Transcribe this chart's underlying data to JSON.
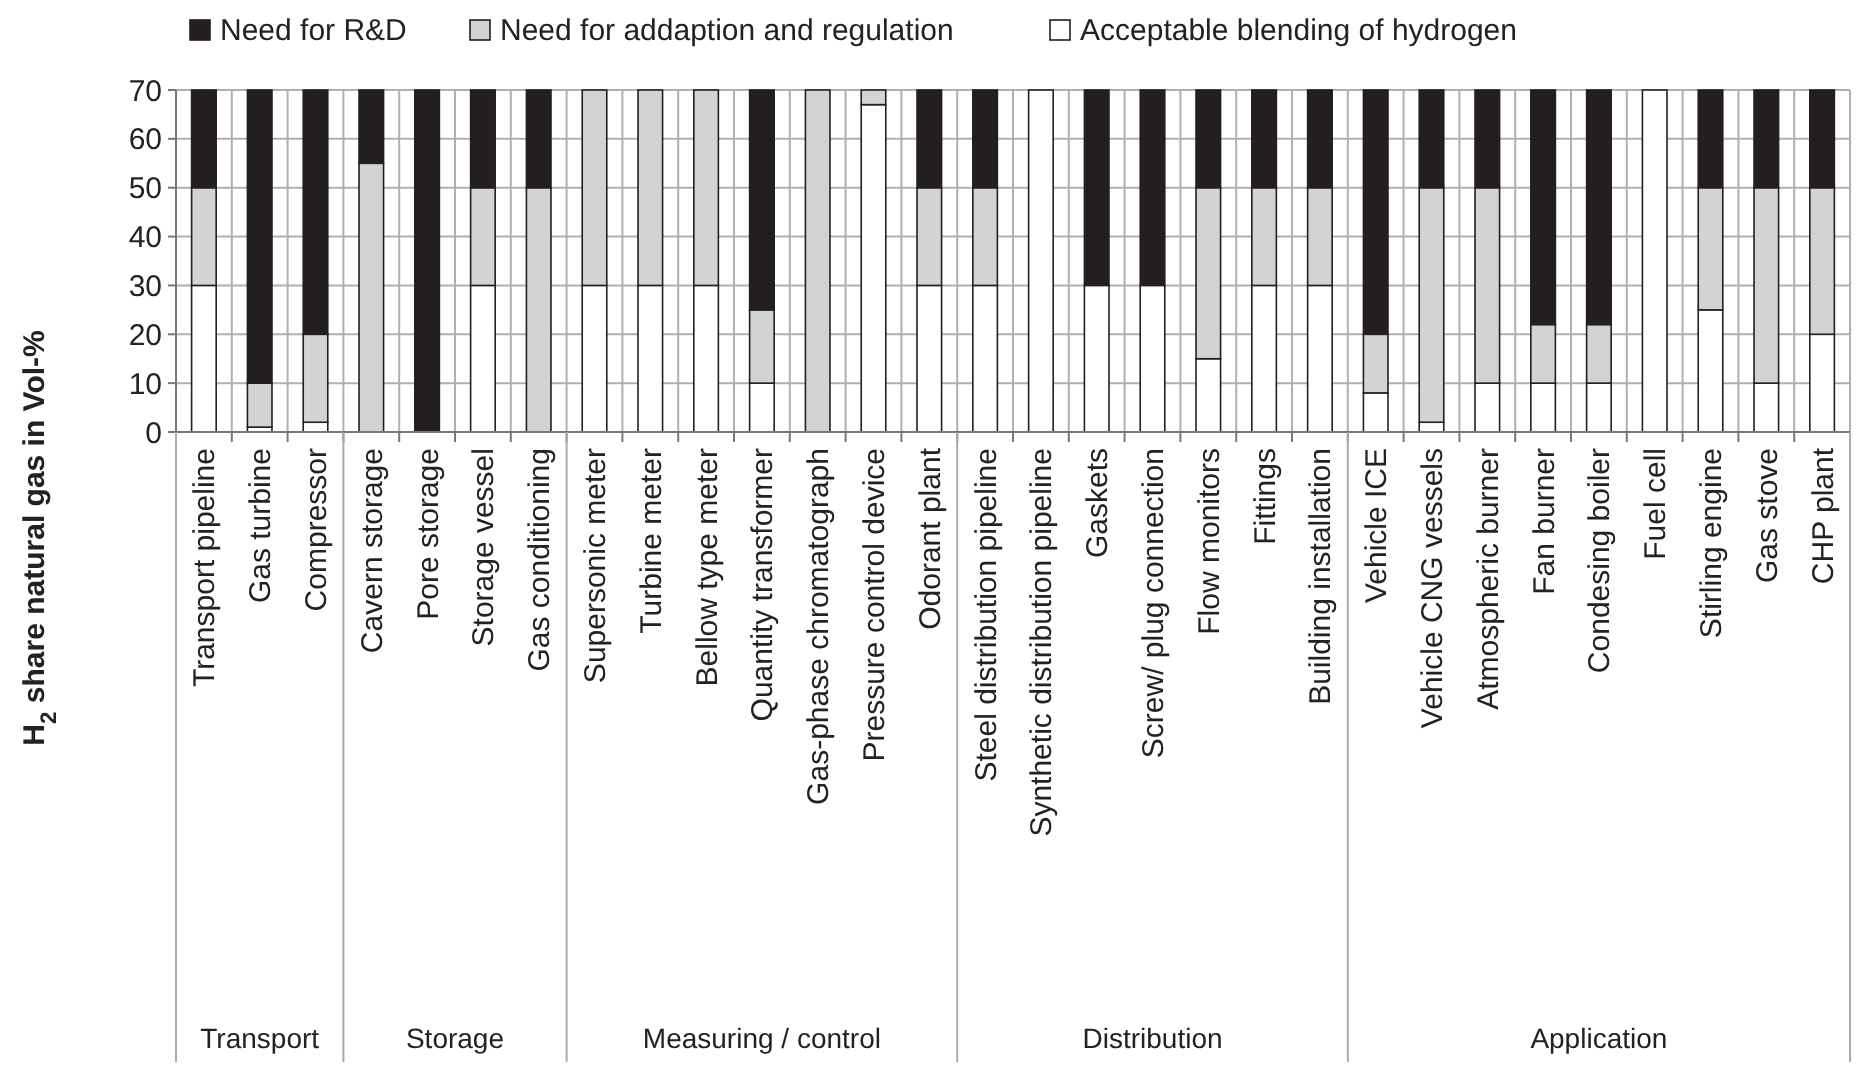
{
  "chart_data": {
    "type": "bar",
    "stacked": true,
    "ylabel": "H$_{2}$ share natural gas  in Vol-%",
    "categories": [
      "Transport pipeline",
      "Gas turbine",
      "Compressor",
      "Cavern storage",
      "Pore storage",
      "Storage vessel",
      "Gas conditioning",
      "Supersonic meter",
      "Turbine meter",
      "Bellow type meter",
      "Quantity transformer",
      "Gas-phase chromatograph",
      "Pressure control device",
      "Odorant plant",
      "Steel distribution pipeline",
      "Synthetic distribution pipeline",
      "Gaskets",
      "Screw/ plug connection",
      "Flow monitors",
      "Fittings",
      "Building installation",
      "Vehicle ICE",
      "Vehicle CNG vessels",
      "Atmospheric burner",
      "Fan burner",
      "Condesing boiler",
      "Fuel cell",
      "Stirling engine",
      "Gas stove",
      "CHP plant"
    ],
    "series": [
      {
        "name": "Acceptable blending of hydrogen",
        "color": "#ffffff",
        "values": [
          30,
          1,
          2,
          0,
          0,
          30,
          0,
          30,
          30,
          30,
          10,
          0,
          67,
          30,
          30,
          70,
          30,
          30,
          15,
          30,
          30,
          8,
          2,
          10,
          10,
          10,
          70,
          25,
          10,
          20
        ]
      },
      {
        "name": "Need for addaption and regulation",
        "color": "#d1d3d4",
        "values": [
          20,
          9,
          18,
          55,
          0,
          20,
          50,
          40,
          40,
          40,
          15,
          70,
          3,
          20,
          20,
          0,
          0,
          0,
          35,
          20,
          20,
          12,
          48,
          40,
          12,
          12,
          0,
          25,
          40,
          30
        ]
      },
      {
        "name": "Need for R&D",
        "color": "#231f20",
        "values": [
          20,
          60,
          50,
          15,
          70,
          20,
          20,
          0,
          0,
          0,
          45,
          0,
          0,
          20,
          20,
          0,
          40,
          40,
          20,
          20,
          20,
          50,
          20,
          20,
          48,
          48,
          0,
          20,
          20,
          20
        ]
      }
    ],
    "ylim": [
      0,
      70
    ],
    "yticks": [
      0,
      10,
      20,
      30,
      40,
      50,
      60,
      70
    ],
    "grid": true,
    "legend": "top",
    "annotations": [
      "Transport",
      "Storage",
      "Measuring / control",
      "Distribution",
      "Application"
    ]
  }
}
